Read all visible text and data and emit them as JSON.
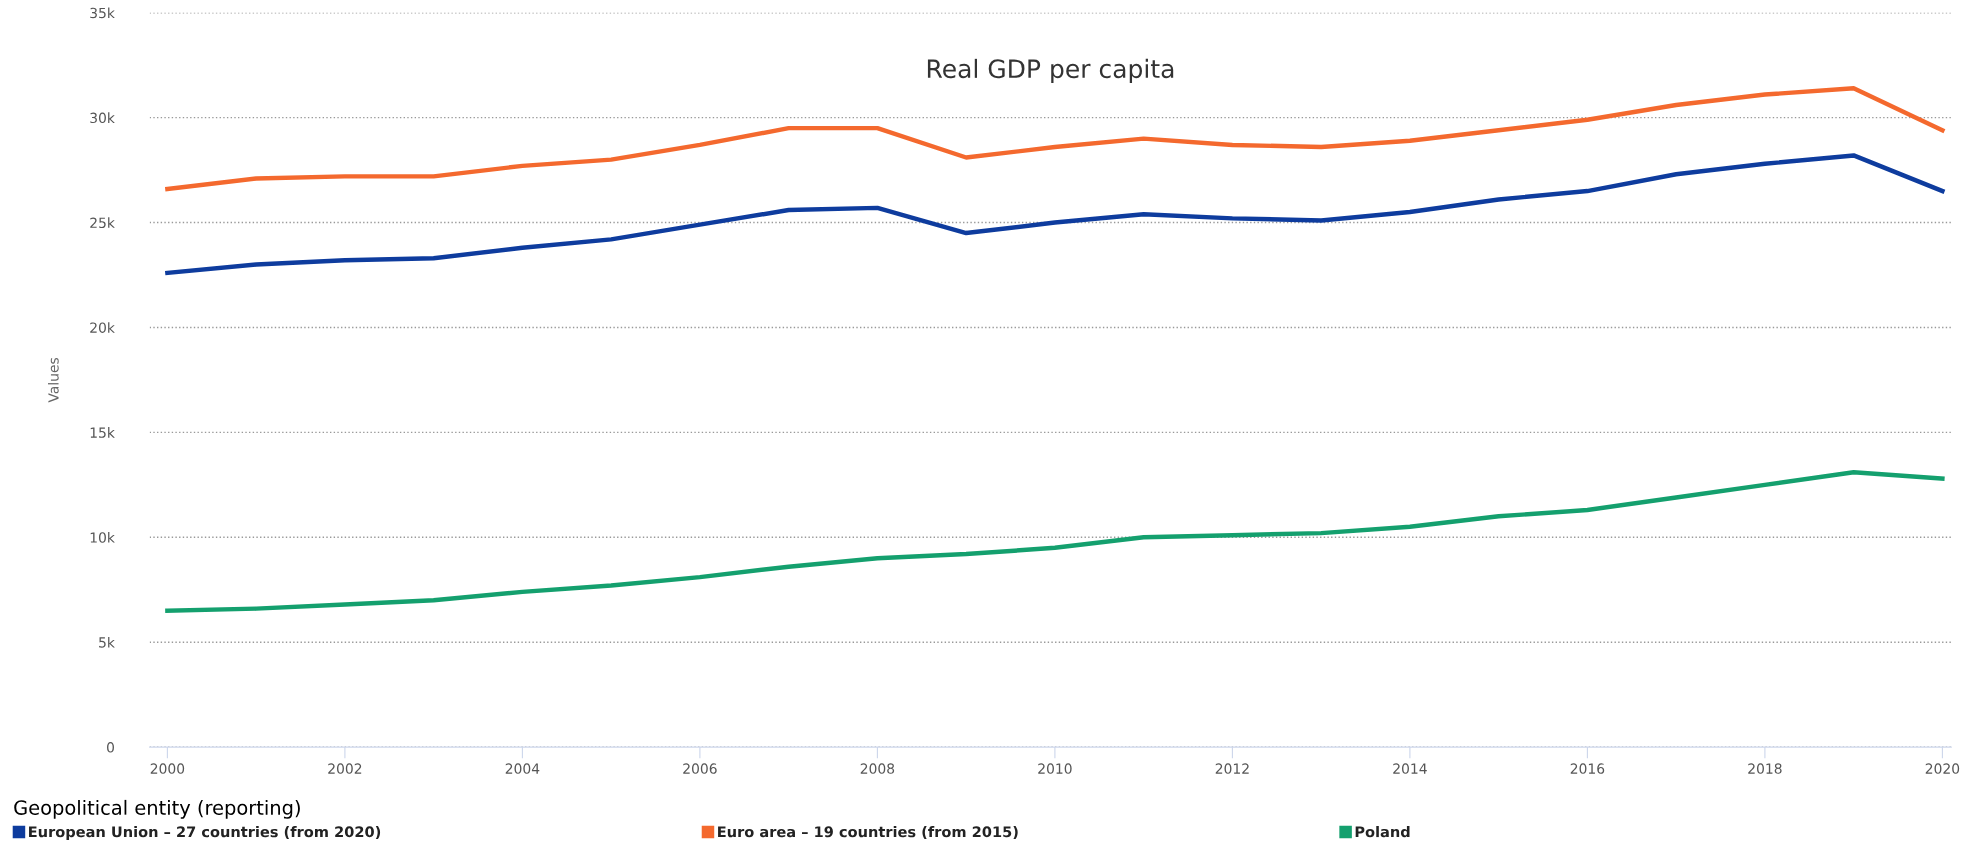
{
  "chart_data": {
    "type": "line",
    "title": "Real GDP per capita",
    "ylabel": "Values",
    "legend_title": "Geopolitical entity (reporting)",
    "x": [
      2000,
      2001,
      2002,
      2003,
      2004,
      2005,
      2006,
      2007,
      2008,
      2009,
      2010,
      2011,
      2012,
      2013,
      2014,
      2015,
      2016,
      2017,
      2018,
      2019,
      2020
    ],
    "series": [
      {
        "name": "European Union – 27 countries (from 2020)",
        "color": "#0e3c9e",
        "values": [
          22600,
          23000,
          23200,
          23300,
          23800,
          24200,
          24900,
          25600,
          25700,
          24500,
          25000,
          25400,
          25200,
          25100,
          25500,
          26100,
          26500,
          27300,
          27800,
          28200,
          26500
        ]
      },
      {
        "name": "Euro area – 19 countries (from 2015)",
        "color": "#f4692e",
        "values": [
          26600,
          27100,
          27200,
          27200,
          27700,
          28000,
          28700,
          29500,
          29500,
          28100,
          28600,
          29000,
          28700,
          28600,
          28900,
          29400,
          29900,
          30600,
          31100,
          31400,
          29400
        ]
      },
      {
        "name": "Poland",
        "color": "#14a06e",
        "values": [
          6500,
          6600,
          6800,
          7000,
          7400,
          7700,
          8100,
          8600,
          9000,
          9200,
          9500,
          10000,
          10100,
          10200,
          10500,
          11000,
          11300,
          11900,
          12500,
          13100,
          12800
        ]
      }
    ],
    "xlim": [
      1999.8,
      2020.1
    ],
    "xticks": [
      2000,
      2002,
      2004,
      2006,
      2008,
      2010,
      2012,
      2014,
      2016,
      2018,
      2020
    ],
    "ylim": [
      0,
      35000
    ],
    "yticks": [
      {
        "value": 0,
        "label": "0"
      },
      {
        "value": 5000,
        "label": "5k"
      },
      {
        "value": 10000,
        "label": "10k"
      },
      {
        "value": 15000,
        "label": "15k"
      },
      {
        "value": 20000,
        "label": "20k"
      },
      {
        "value": 25000,
        "label": "25k"
      },
      {
        "value": 30000,
        "label": "30k"
      },
      {
        "value": 35000,
        "label": "35k"
      }
    ],
    "grid": "y",
    "legend": "bottom",
    "marker": "none",
    "line_style": "solid"
  }
}
